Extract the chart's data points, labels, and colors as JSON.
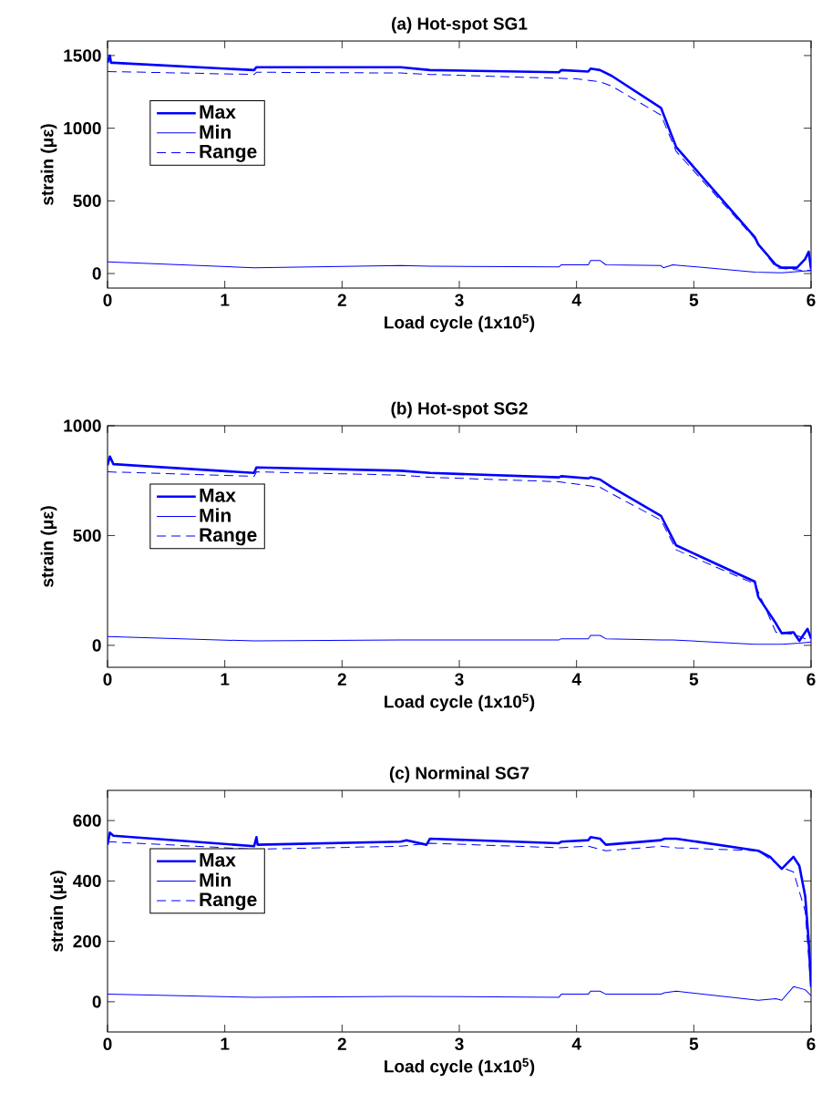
{
  "chart_data": [
    {
      "type": "line",
      "title": "(a) Hot-spot SG1",
      "xlabel": "Load cycle (1x10$^{5}$)",
      "ylabel": "strain (με)",
      "xlim": [
        0,
        6
      ],
      "xticks": [
        0,
        1,
        2,
        3,
        4,
        5,
        6
      ],
      "ylim": [
        -100,
        1600
      ],
      "yticks": [
        0,
        500,
        1000,
        1500
      ],
      "legend": "top left",
      "grid": false,
      "series": [
        {
          "name": "Max",
          "color": "#0000ff",
          "line_style": "solid",
          "x": [
            0,
            0.02,
            0.03,
            0.05,
            1.25,
            1.27,
            2.5,
            2.75,
            3.85,
            3.87,
            4.1,
            4.12,
            4.2,
            4.3,
            4.72,
            4.85,
            5.52,
            5.55,
            5.7,
            5.75,
            5.88,
            5.95,
            5.98,
            6.0
          ],
          "values": [
            1450,
            1500,
            1450,
            1450,
            1400,
            1420,
            1420,
            1400,
            1385,
            1400,
            1390,
            1410,
            1400,
            1360,
            1140,
            870,
            250,
            200,
            60,
            40,
            40,
            100,
            150,
            30
          ]
        },
        {
          "name": "Min",
          "color": "#0000ff",
          "line_style": "solid",
          "x": [
            0,
            1.25,
            2.5,
            2.75,
            3.85,
            3.87,
            4.1,
            4.12,
            4.2,
            4.25,
            4.72,
            4.74,
            4.82,
            5.52,
            5.75,
            6.0
          ],
          "values": [
            80,
            40,
            55,
            50,
            45,
            60,
            60,
            90,
            90,
            60,
            55,
            40,
            60,
            10,
            5,
            20
          ]
        },
        {
          "name": "Range",
          "color": "#0000ff",
          "line_style": "dashed",
          "x": [
            0,
            1.25,
            1.27,
            2.5,
            2.75,
            4.0,
            4.2,
            4.3,
            4.72,
            4.85,
            5.52,
            5.7,
            5.95,
            6.0
          ],
          "values": [
            1390,
            1370,
            1385,
            1380,
            1370,
            1340,
            1320,
            1290,
            1090,
            840,
            240,
            40,
            20,
            20
          ]
        }
      ]
    },
    {
      "type": "line",
      "title": "(b) Hot-spot SG2",
      "xlabel": "Load cycle (1x10$^{5}$)",
      "ylabel": "strain (με)",
      "xlim": [
        0,
        6
      ],
      "xticks": [
        0,
        1,
        2,
        3,
        4,
        5,
        6
      ],
      "ylim": [
        -100,
        1000
      ],
      "yticks": [
        0,
        500,
        1000
      ],
      "legend": "top left",
      "grid": false,
      "series": [
        {
          "name": "Max",
          "color": "#0000ff",
          "line_style": "solid",
          "x": [
            0,
            0.02,
            0.05,
            1.25,
            1.27,
            2.5,
            2.75,
            3.85,
            3.87,
            4.1,
            4.12,
            4.2,
            4.3,
            4.72,
            4.85,
            5.52,
            5.55,
            5.7,
            5.75,
            5.85,
            5.9,
            5.97,
            6.0
          ],
          "values": [
            820,
            860,
            825,
            785,
            810,
            795,
            785,
            765,
            770,
            760,
            765,
            755,
            720,
            590,
            455,
            290,
            220,
            100,
            55,
            60,
            20,
            75,
            30
          ]
        },
        {
          "name": "Min",
          "color": "#0000ff",
          "line_style": "solid",
          "x": [
            0,
            1.25,
            2.5,
            3.85,
            3.87,
            4.1,
            4.12,
            4.2,
            4.25,
            4.72,
            4.82,
            5.52,
            5.75,
            5.9,
            6.0
          ],
          "values": [
            40,
            20,
            25,
            25,
            30,
            30,
            45,
            45,
            30,
            25,
            25,
            5,
            5,
            10,
            15
          ]
        },
        {
          "name": "Range",
          "color": "#0000ff",
          "line_style": "dashed",
          "x": [
            0,
            1.25,
            1.27,
            2.5,
            2.75,
            3.85,
            4.2,
            4.3,
            4.72,
            4.85,
            5.52,
            5.7,
            5.85,
            6.0
          ],
          "values": [
            790,
            770,
            790,
            775,
            765,
            745,
            720,
            690,
            570,
            435,
            280,
            60,
            50,
            20
          ]
        }
      ]
    },
    {
      "type": "line",
      "title": "(c) Norminal SG7",
      "xlabel": "Load cycle (1x10$^{5}$)",
      "ylabel": "strain (με)",
      "xlim": [
        0,
        6
      ],
      "xticks": [
        0,
        1,
        2,
        3,
        4,
        5,
        6
      ],
      "ylim": [
        -100,
        700
      ],
      "yticks": [
        0,
        200,
        400,
        600
      ],
      "legend": "top left",
      "grid": false,
      "series": [
        {
          "name": "Max",
          "color": "#0000ff",
          "line_style": "solid",
          "x": [
            0,
            0.02,
            0.05,
            1.25,
            1.27,
            1.28,
            2.5,
            2.55,
            2.72,
            2.75,
            3.85,
            3.87,
            4.1,
            4.12,
            4.2,
            4.25,
            4.72,
            4.75,
            4.85,
            5.55,
            5.65,
            5.75,
            5.85,
            5.9,
            5.95,
            5.98,
            6.0
          ],
          "values": [
            520,
            560,
            550,
            515,
            545,
            520,
            530,
            535,
            520,
            540,
            525,
            530,
            535,
            545,
            540,
            520,
            535,
            540,
            540,
            500,
            480,
            440,
            480,
            450,
            350,
            200,
            50
          ]
        },
        {
          "name": "Min",
          "color": "#0000ff",
          "line_style": "solid",
          "x": [
            0,
            1.25,
            2.5,
            3.85,
            3.87,
            4.1,
            4.12,
            4.2,
            4.25,
            4.72,
            4.75,
            4.85,
            5.55,
            5.7,
            5.75,
            5.85,
            5.95,
            6.0
          ],
          "values": [
            25,
            15,
            18,
            15,
            25,
            25,
            35,
            35,
            25,
            25,
            30,
            35,
            5,
            10,
            5,
            50,
            40,
            20
          ]
        },
        {
          "name": "Range",
          "color": "#0000ff",
          "line_style": "dashed",
          "x": [
            0,
            1.25,
            2.5,
            2.75,
            3.85,
            4.1,
            4.2,
            4.25,
            4.72,
            4.85,
            5.55,
            5.75,
            5.85,
            5.95,
            6.0
          ],
          "values": [
            530,
            505,
            515,
            525,
            510,
            515,
            505,
            500,
            515,
            510,
            500,
            445,
            430,
            300,
            40
          ]
        }
      ]
    }
  ]
}
